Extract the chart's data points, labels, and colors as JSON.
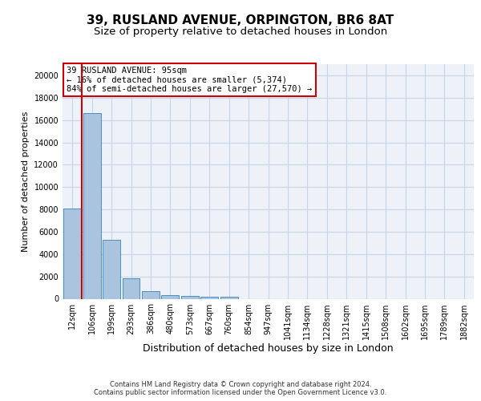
{
  "title1": "39, RUSLAND AVENUE, ORPINGTON, BR6 8AT",
  "title2": "Size of property relative to detached houses in London",
  "xlabel": "Distribution of detached houses by size in London",
  "ylabel": "Number of detached properties",
  "bar_labels": [
    "12sqm",
    "106sqm",
    "199sqm",
    "293sqm",
    "386sqm",
    "480sqm",
    "573sqm",
    "667sqm",
    "760sqm",
    "854sqm",
    "947sqm",
    "1041sqm",
    "1134sqm",
    "1228sqm",
    "1321sqm",
    "1415sqm",
    "1508sqm",
    "1602sqm",
    "1695sqm",
    "1789sqm",
    "1882sqm"
  ],
  "bar_values": [
    8100,
    16600,
    5300,
    1800,
    700,
    350,
    280,
    200,
    180,
    0,
    0,
    0,
    0,
    0,
    0,
    0,
    0,
    0,
    0,
    0,
    0
  ],
  "bar_color": "#aac4e0",
  "bar_edge_color": "#4a90c4",
  "grid_color": "#c8d4e8",
  "background_color": "#eef2f8",
  "annotation_text": "39 RUSLAND AVENUE: 95sqm\n← 16% of detached houses are smaller (5,374)\n84% of semi-detached houses are larger (27,570) →",
  "annotation_box_color": "#ffffff",
  "annotation_box_edge": "#cc0000",
  "vline_color": "#cc0000",
  "ylim": [
    0,
    21000
  ],
  "yticks": [
    0,
    2000,
    4000,
    6000,
    8000,
    10000,
    12000,
    14000,
    16000,
    18000,
    20000
  ],
  "footer": "Contains HM Land Registry data © Crown copyright and database right 2024.\nContains public sector information licensed under the Open Government Licence v3.0.",
  "title_fontsize": 11,
  "subtitle_fontsize": 9.5,
  "tick_fontsize": 7,
  "ylabel_fontsize": 8,
  "xlabel_fontsize": 9,
  "annotation_fontsize": 7.5,
  "footer_fontsize": 6
}
